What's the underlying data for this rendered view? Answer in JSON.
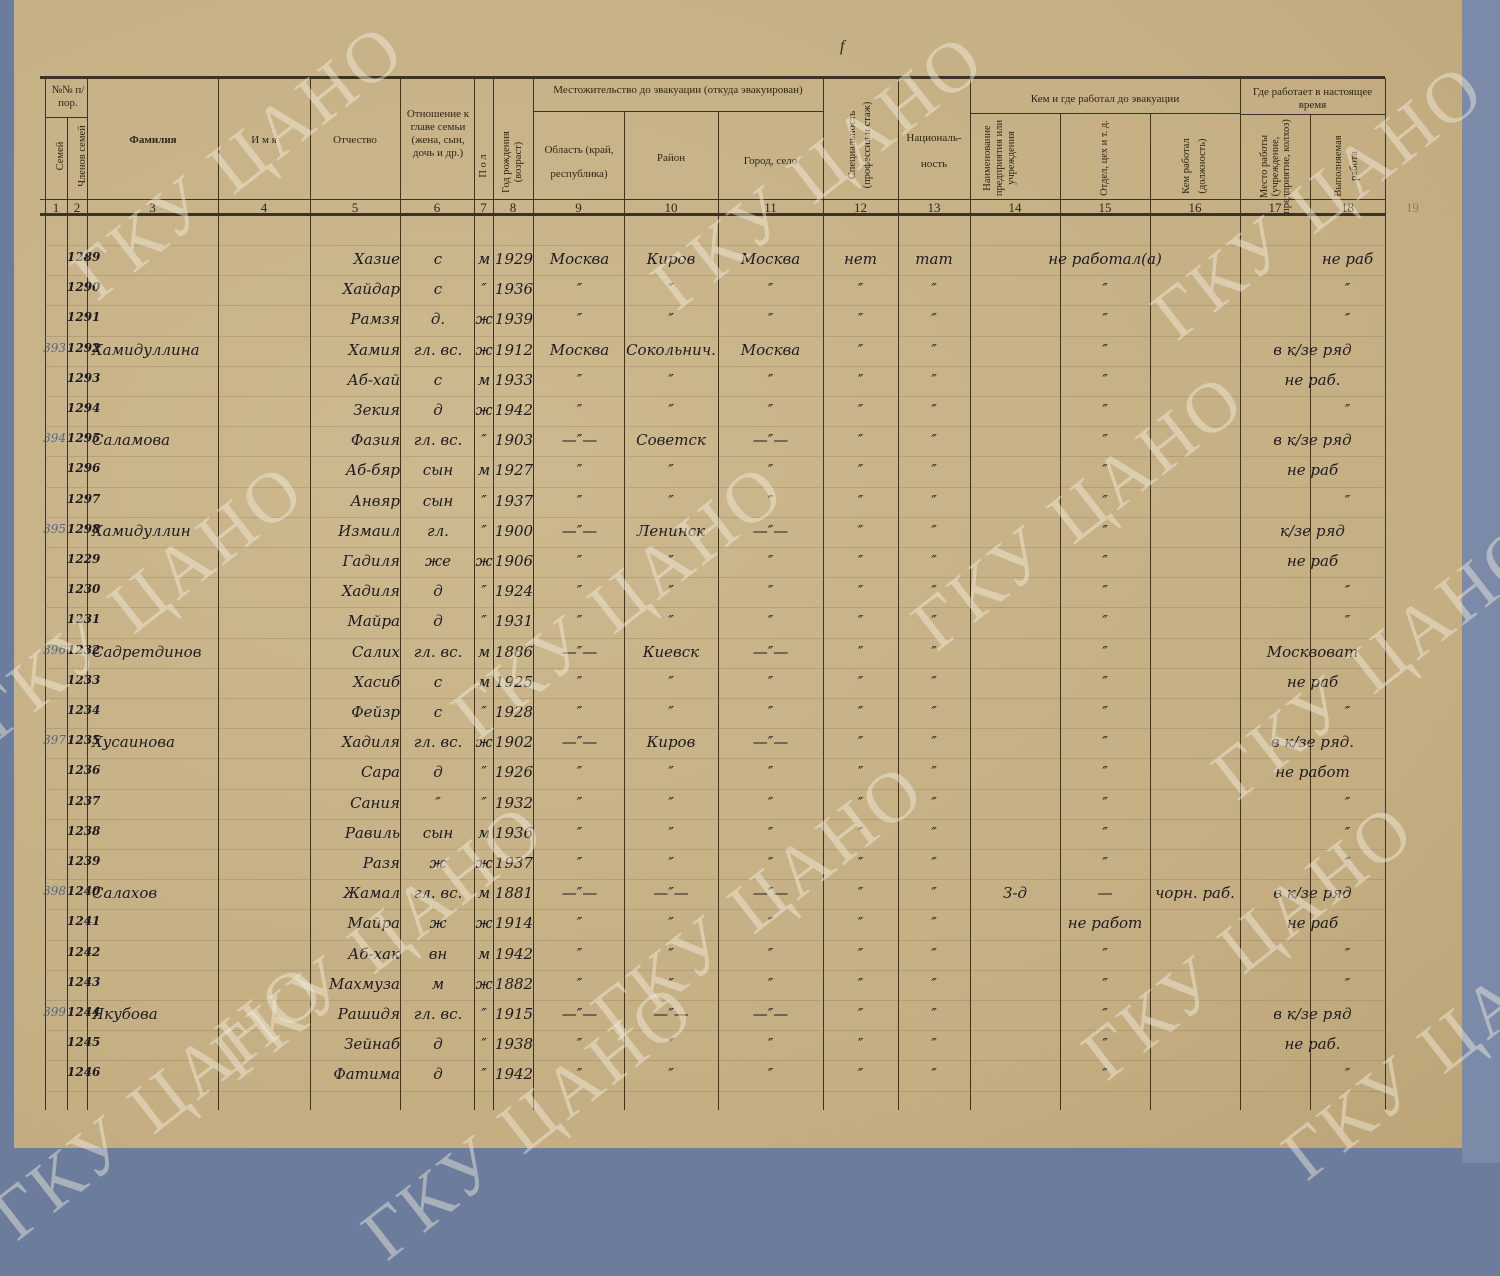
{
  "header": {
    "nn": "№№ п/пор.",
    "semei": "Семей",
    "chlenov": "Членов семей",
    "c3": "Фамилия",
    "c4": "И м я",
    "c5": "Отчество",
    "c6": "Отношение к главе семьи (жена, сын, дочь и др.)",
    "c7": "П о л",
    "c8": "Год рождения (возраст)",
    "residence": "Местожительство до эвакуации (откуда эвакуирован)",
    "c9": "Область (край, республика)",
    "c10": "Район",
    "c11": "Город, село",
    "c12": "Специальность (профессия и стаж)",
    "c13": "Националь- ность",
    "work_before": "Кем и где работал до эвакуации",
    "c14": "Наименование предприятия или учреждения",
    "c15": "Отдел, цех и т. д.",
    "c16": "Кем работал (должность)",
    "work_now": "Где работает в настоящее время",
    "c17": "Место работы (учреждение, предприятие, колхоз)",
    "c18": "Выполняемая работа",
    "numbers": [
      "1",
      "2",
      "3",
      "4",
      "5",
      "6",
      "7",
      "8",
      "9",
      "10",
      "11",
      "12",
      "13",
      "14",
      "15",
      "16",
      "17",
      "18",
      "19"
    ]
  },
  "corner_mark": "f",
  "watermark": "ГКУ ЦАНО",
  "rows": [
    [
      "",
      "1289",
      "",
      "Хазие",
      "с",
      "м",
      "1929",
      "Москва",
      "Киров",
      "Москва",
      "нет",
      "тат",
      "не работал(а)",
      "",
      "",
      "",
      "не раб"
    ],
    [
      "",
      "1290",
      "",
      "Хайдар",
      "с",
      "″",
      "1936",
      "″",
      "″",
      "″",
      "″",
      "″",
      "",
      "″",
      "",
      "",
      "″"
    ],
    [
      "",
      "1291",
      "",
      "Рамзя",
      "д.",
      "ж",
      "1939",
      "″",
      "″",
      "″",
      "″",
      "″",
      "",
      "″",
      "",
      "",
      "″"
    ],
    [
      "393",
      "1292",
      "Хамидуллина",
      "Хамия",
      "гл. вс.",
      "ж",
      "1912",
      "Москва",
      "Сокольнич.",
      "Москва",
      "″",
      "″",
      "",
      "″",
      "",
      "в к/зе ряд",
      ""
    ],
    [
      "",
      "1293",
      "",
      "Аб-хай",
      "с",
      "м",
      "1933",
      "″",
      "″",
      "″",
      "″",
      "″",
      "",
      "″",
      "",
      "не раб.",
      ""
    ],
    [
      "",
      "1294",
      "",
      "Зекия",
      "д",
      "ж",
      "1942",
      "″",
      "″",
      "″",
      "″",
      "″",
      "",
      "″",
      "",
      "",
      "″"
    ],
    [
      "394",
      "1295",
      "Саламова",
      "Фазия",
      "гл. вс.",
      "″",
      "1903",
      "—″—",
      "Советск",
      "—″—",
      "″",
      "″",
      "",
      "″",
      "",
      "в к/зе ряд",
      ""
    ],
    [
      "",
      "1296",
      "",
      "Аб-бяр",
      "сын",
      "м",
      "1927",
      "″",
      "″",
      "″",
      "″",
      "″",
      "",
      "″",
      "",
      "не раб",
      ""
    ],
    [
      "",
      "1297",
      "",
      "Анвяр",
      "сын",
      "″",
      "1937",
      "″",
      "″",
      "″",
      "″",
      "″",
      "",
      "″",
      "",
      "",
      "″"
    ],
    [
      "395",
      "1298",
      "Хамидуллин",
      "Измаил",
      "гл.",
      "″",
      "1900",
      "—″—",
      "Ленинск",
      "—″—",
      "″",
      "″",
      "",
      "″",
      "",
      "к/зе ряд",
      ""
    ],
    [
      "",
      "1229",
      "",
      "Гадиля",
      "же",
      "ж",
      "1906",
      "″",
      "″",
      "″",
      "″",
      "″",
      "",
      "″",
      "",
      "не раб",
      ""
    ],
    [
      "",
      "1230",
      "",
      "Хадиля",
      "д",
      "″",
      "1924",
      "″",
      "″",
      "″",
      "″",
      "″",
      "",
      "″",
      "",
      "",
      "″"
    ],
    [
      "",
      "1231",
      "",
      "Майра",
      "д",
      "″",
      "1931",
      "″",
      "″",
      "″",
      "″",
      "″",
      "",
      "″",
      "",
      "",
      "″"
    ],
    [
      "396",
      "1232",
      "Садретдинов",
      "Салих",
      "гл. вс.",
      "м",
      "1886",
      "—″—",
      "Киевск",
      "—″—",
      "″",
      "″",
      "",
      "″",
      "",
      "Москвоват",
      ""
    ],
    [
      "",
      "1233",
      "",
      "Хасиб",
      "с",
      "м",
      "1925",
      "″",
      "″",
      "″",
      "″",
      "″",
      "",
      "″",
      "",
      "не раб",
      ""
    ],
    [
      "",
      "1234",
      "",
      "Фейзр",
      "с",
      "″",
      "1928",
      "″",
      "″",
      "″",
      "″",
      "″",
      "",
      "″",
      "",
      "",
      "″"
    ],
    [
      "397",
      "1235",
      "Хусаинова",
      "Хадиля",
      "гл. вс.",
      "ж",
      "1902",
      "—″—",
      "Киров",
      "—″—",
      "″",
      "″",
      "",
      "″",
      "",
      "в к/зе ряд.",
      ""
    ],
    [
      "",
      "1236",
      "",
      "Сара",
      "д",
      "″",
      "1926",
      "″",
      "″",
      "″",
      "″",
      "″",
      "",
      "″",
      "",
      "не работ",
      ""
    ],
    [
      "",
      "1237",
      "",
      "Сания",
      "″",
      "″",
      "1932",
      "″",
      "″",
      "″",
      "″",
      "″",
      "",
      "″",
      "",
      "",
      "″"
    ],
    [
      "",
      "1238",
      "",
      "Равиль",
      "сын",
      "м",
      "1936",
      "″",
      "″",
      "″",
      "″",
      "″",
      "",
      "″",
      "",
      "",
      "″"
    ],
    [
      "",
      "1239",
      "",
      "Разя",
      "ж",
      "ж",
      "1937",
      "″",
      "″",
      "″",
      "″",
      "″",
      "",
      "″",
      "",
      "",
      "″"
    ],
    [
      "398",
      "1240",
      "Салахов",
      "Жамал",
      "гл. вс.",
      "м",
      "1881",
      "—″—",
      "—″—",
      "—″—",
      "″",
      "″",
      "З-д",
      "—",
      "чорн. раб.",
      "в к/зе ряд",
      ""
    ],
    [
      "",
      "1241",
      "",
      "Майра",
      "ж",
      "ж",
      "1914",
      "″",
      "″",
      "″",
      "″",
      "″",
      "не работ",
      "",
      "",
      "не раб",
      ""
    ],
    [
      "",
      "1242",
      "",
      "Аб-хак",
      "вн",
      "м",
      "1942",
      "″",
      "″",
      "″",
      "″",
      "″",
      "",
      "″",
      "",
      "",
      "″"
    ],
    [
      "",
      "1243",
      "",
      "Махмуза",
      "м",
      "ж",
      "1882",
      "″",
      "″",
      "″",
      "″",
      "″",
      "",
      "″",
      "",
      "",
      "″"
    ],
    [
      "399",
      "1244",
      "Якубова",
      "Рашидя",
      "гл. вс.",
      "″",
      "1915",
      "—″—",
      "—″—",
      "—″—",
      "″",
      "″",
      "",
      "″",
      "",
      "в к/зе ряд",
      ""
    ],
    [
      "",
      "1245",
      "",
      "Зейнаб",
      "д",
      "″",
      "1938",
      "″",
      "″",
      "″",
      "″",
      "″",
      "",
      "″",
      "",
      "не раб.",
      ""
    ],
    [
      "",
      "1246",
      "",
      "Фатима",
      "д",
      "″",
      "1942",
      "″",
      "″",
      "″",
      "″",
      "″",
      "",
      "″",
      "",
      "",
      "″"
    ]
  ]
}
